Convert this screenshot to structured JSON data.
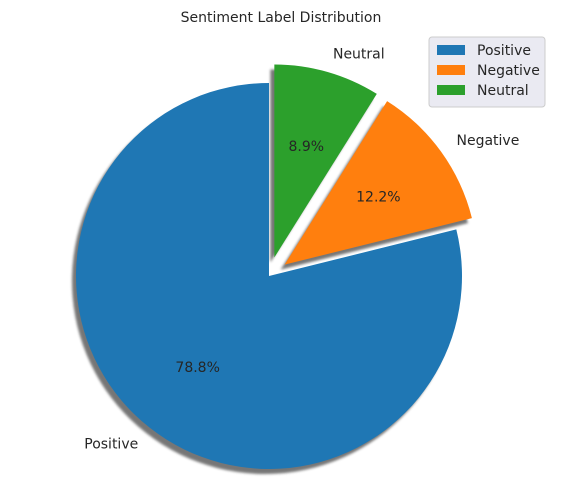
{
  "chart_data": {
    "type": "pie",
    "title": "Sentiment Label Distribution",
    "start_angle_deg": 90,
    "direction": "counterclockwise",
    "shadow": true,
    "legend_position": "top-right",
    "slices": [
      {
        "label": "Positive",
        "value": 78.8,
        "pct_label": "78.8%",
        "color": "#1f77b4",
        "explode": 0.0
      },
      {
        "label": "Negative",
        "value": 12.2,
        "pct_label": "12.2%",
        "color": "#ff7f0e",
        "explode": 0.1
      },
      {
        "label": "Neutral",
        "value": 8.9,
        "pct_label": "8.9%",
        "color": "#2ca02c",
        "explode": 0.1
      }
    ],
    "legend": [
      "Positive",
      "Negative",
      "Neutral"
    ]
  }
}
